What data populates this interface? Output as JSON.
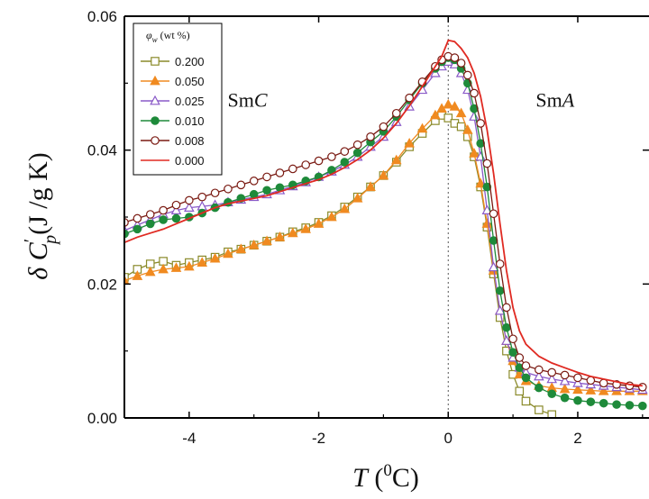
{
  "chart_data": {
    "type": "line",
    "xlabel": "T (⁰C)",
    "ylabel": "δC′p (J/g K)",
    "xlim": [
      -5.0,
      3.1
    ],
    "ylim": [
      0.0,
      0.06
    ],
    "xticks": [
      "-4",
      "-2",
      "0",
      "2"
    ],
    "xtick_values": [
      -4,
      -2,
      0,
      2
    ],
    "yticks": [
      "0.00",
      "0.02",
      "0.04",
      "0.06"
    ],
    "ytick_values": [
      0.0,
      0.02,
      0.04,
      0.06
    ],
    "grid": false,
    "legend_position": "top-left",
    "legend_title": "φw (wt %)",
    "annotations": [
      {
        "text": "SmC",
        "x": -3.1,
        "y": 0.0465
      },
      {
        "text": "SmA",
        "x": 1.65,
        "y": 0.0465
      }
    ],
    "transition_line_x": 0,
    "series": [
      {
        "name": "0.200",
        "color": "#8a8a2a",
        "marker": "open-square",
        "x": [
          -5.0,
          -4.8,
          -4.6,
          -4.4,
          -4.2,
          -4.0,
          -3.8,
          -3.6,
          -3.4,
          -3.2,
          -3.0,
          -2.8,
          -2.6,
          -2.4,
          -2.2,
          -2.0,
          -1.8,
          -1.6,
          -1.4,
          -1.2,
          -1.0,
          -0.8,
          -0.6,
          -0.4,
          -0.2,
          -0.1,
          0.0,
          0.1,
          0.2,
          0.3,
          0.4,
          0.5,
          0.6,
          0.7,
          0.8,
          0.9,
          1.0,
          1.1,
          1.2,
          1.4,
          1.6
        ],
        "y": [
          0.021,
          0.0222,
          0.023,
          0.0234,
          0.0228,
          0.0232,
          0.0236,
          0.024,
          0.0248,
          0.0252,
          0.0258,
          0.0264,
          0.027,
          0.0278,
          0.0284,
          0.0292,
          0.0302,
          0.0315,
          0.033,
          0.0345,
          0.0362,
          0.0382,
          0.0405,
          0.0425,
          0.0444,
          0.0452,
          0.0448,
          0.044,
          0.0435,
          0.042,
          0.039,
          0.0345,
          0.0285,
          0.0215,
          0.015,
          0.01,
          0.0065,
          0.004,
          0.0025,
          0.0012,
          0.0005
        ]
      },
      {
        "name": "0.050",
        "color": "#f08a20",
        "marker": "filled-triangle",
        "x": [
          -5.0,
          -4.8,
          -4.6,
          -4.4,
          -4.2,
          -4.0,
          -3.8,
          -3.6,
          -3.4,
          -3.2,
          -3.0,
          -2.8,
          -2.6,
          -2.4,
          -2.2,
          -2.0,
          -1.8,
          -1.6,
          -1.4,
          -1.2,
          -1.0,
          -0.8,
          -0.6,
          -0.4,
          -0.2,
          -0.1,
          0.0,
          0.1,
          0.2,
          0.3,
          0.4,
          0.5,
          0.6,
          0.7,
          0.8,
          0.9,
          1.0,
          1.1,
          1.2,
          1.4,
          1.6,
          1.8,
          2.0,
          2.2,
          2.4,
          2.6,
          2.8,
          3.0
        ],
        "y": [
          0.0205,
          0.0212,
          0.0218,
          0.0222,
          0.0224,
          0.0226,
          0.0232,
          0.0238,
          0.0245,
          0.0252,
          0.0258,
          0.0264,
          0.027,
          0.0276,
          0.0282,
          0.029,
          0.03,
          0.0312,
          0.0328,
          0.0345,
          0.0362,
          0.0385,
          0.041,
          0.0432,
          0.0452,
          0.0462,
          0.0468,
          0.0465,
          0.0455,
          0.043,
          0.0395,
          0.035,
          0.029,
          0.022,
          0.016,
          0.0115,
          0.0085,
          0.0065,
          0.0055,
          0.0048,
          0.0045,
          0.0043,
          0.0042,
          0.0041,
          0.004,
          0.004,
          0.004,
          0.004
        ]
      },
      {
        "name": "0.025",
        "color": "#8a5ac8",
        "marker": "open-triangle",
        "x": [
          -5.0,
          -4.8,
          -4.6,
          -4.4,
          -4.2,
          -4.0,
          -3.8,
          -3.6,
          -3.4,
          -3.2,
          -3.0,
          -2.8,
          -2.6,
          -2.4,
          -2.2,
          -2.0,
          -1.8,
          -1.6,
          -1.4,
          -1.2,
          -1.0,
          -0.8,
          -0.6,
          -0.4,
          -0.2,
          -0.1,
          0.0,
          0.1,
          0.2,
          0.3,
          0.4,
          0.5,
          0.6,
          0.7,
          0.8,
          0.9,
          1.0,
          1.1,
          1.2,
          1.4,
          1.6,
          1.8,
          2.0,
          2.2,
          2.4,
          2.6,
          2.8,
          3.0
        ],
        "y": [
          0.028,
          0.0288,
          0.0296,
          0.0304,
          0.031,
          0.0314,
          0.0316,
          0.0318,
          0.0322,
          0.0326,
          0.033,
          0.0334,
          0.034,
          0.0346,
          0.0352,
          0.036,
          0.0368,
          0.0378,
          0.039,
          0.0405,
          0.042,
          0.0442,
          0.0465,
          0.049,
          0.0515,
          0.0525,
          0.0532,
          0.0528,
          0.0515,
          0.049,
          0.045,
          0.039,
          0.031,
          0.0225,
          0.016,
          0.0115,
          0.009,
          0.0075,
          0.0068,
          0.0062,
          0.0058,
          0.0055,
          0.0052,
          0.005,
          0.0048,
          0.0046,
          0.0044,
          0.0042
        ]
      },
      {
        "name": "0.010",
        "color": "#1e8a3a",
        "marker": "filled-circle",
        "x": [
          -5.0,
          -4.8,
          -4.6,
          -4.4,
          -4.2,
          -4.0,
          -3.8,
          -3.6,
          -3.4,
          -3.2,
          -3.0,
          -2.8,
          -2.6,
          -2.4,
          -2.2,
          -2.0,
          -1.8,
          -1.6,
          -1.4,
          -1.2,
          -1.0,
          -0.8,
          -0.6,
          -0.4,
          -0.2,
          -0.1,
          0.0,
          0.1,
          0.2,
          0.3,
          0.4,
          0.5,
          0.6,
          0.7,
          0.8,
          0.9,
          1.0,
          1.1,
          1.2,
          1.4,
          1.6,
          1.8,
          2.0,
          2.2,
          2.4,
          2.6,
          2.8,
          3.0
        ],
        "y": [
          0.0275,
          0.0282,
          0.029,
          0.0296,
          0.0298,
          0.03,
          0.0306,
          0.0314,
          0.0322,
          0.0328,
          0.0334,
          0.034,
          0.0344,
          0.0348,
          0.0354,
          0.036,
          0.037,
          0.0382,
          0.0396,
          0.0412,
          0.0428,
          0.045,
          0.0475,
          0.05,
          0.0522,
          0.0532,
          0.0538,
          0.0535,
          0.0522,
          0.05,
          0.0462,
          0.041,
          0.0345,
          0.0265,
          0.019,
          0.0135,
          0.0098,
          0.0075,
          0.006,
          0.0045,
          0.0036,
          0.003,
          0.0026,
          0.0024,
          0.0022,
          0.002,
          0.0019,
          0.0018
        ]
      },
      {
        "name": "0.008",
        "color": "#7a1a12",
        "marker": "open-circle",
        "x": [
          -5.0,
          -4.8,
          -4.6,
          -4.4,
          -4.2,
          -4.0,
          -3.8,
          -3.6,
          -3.4,
          -3.2,
          -3.0,
          -2.8,
          -2.6,
          -2.4,
          -2.2,
          -2.0,
          -1.8,
          -1.6,
          -1.4,
          -1.2,
          -1.0,
          -0.8,
          -0.6,
          -0.4,
          -0.2,
          -0.1,
          0.0,
          0.1,
          0.2,
          0.3,
          0.4,
          0.5,
          0.6,
          0.7,
          0.8,
          0.9,
          1.0,
          1.1,
          1.2,
          1.4,
          1.6,
          1.8,
          2.0,
          2.2,
          2.4,
          2.6,
          2.8,
          3.0
        ],
        "y": [
          0.0292,
          0.0298,
          0.0304,
          0.031,
          0.0318,
          0.0325,
          0.033,
          0.0336,
          0.0342,
          0.0348,
          0.0354,
          0.036,
          0.0366,
          0.0372,
          0.0378,
          0.0384,
          0.039,
          0.0398,
          0.0408,
          0.042,
          0.0435,
          0.0455,
          0.0478,
          0.0502,
          0.0525,
          0.0535,
          0.054,
          0.0538,
          0.053,
          0.0512,
          0.0485,
          0.044,
          0.038,
          0.0305,
          0.023,
          0.0165,
          0.0118,
          0.009,
          0.0078,
          0.0072,
          0.0068,
          0.0064,
          0.006,
          0.0056,
          0.0052,
          0.005,
          0.0048,
          0.0046
        ]
      },
      {
        "name": "0.000",
        "color": "#e02a22",
        "marker": "none",
        "x": [
          -5.0,
          -4.8,
          -4.6,
          -4.4,
          -4.2,
          -4.0,
          -3.8,
          -3.6,
          -3.4,
          -3.2,
          -3.0,
          -2.8,
          -2.6,
          -2.4,
          -2.2,
          -2.0,
          -1.8,
          -1.6,
          -1.4,
          -1.2,
          -1.0,
          -0.8,
          -0.6,
          -0.4,
          -0.2,
          -0.1,
          0.0,
          0.1,
          0.2,
          0.3,
          0.4,
          0.5,
          0.6,
          0.7,
          0.8,
          0.9,
          1.0,
          1.1,
          1.2,
          1.4,
          1.6,
          1.8,
          2.0,
          2.2,
          2.4,
          2.6,
          2.8,
          3.0
        ],
        "y": [
          0.0262,
          0.027,
          0.0276,
          0.0282,
          0.029,
          0.0298,
          0.0306,
          0.0314,
          0.032,
          0.0324,
          0.0328,
          0.0332,
          0.0338,
          0.0344,
          0.035,
          0.0356,
          0.0364,
          0.0374,
          0.0386,
          0.04,
          0.0418,
          0.044,
          0.0466,
          0.0495,
          0.0525,
          0.054,
          0.0564,
          0.0562,
          0.0552,
          0.0538,
          0.0515,
          0.048,
          0.043,
          0.0365,
          0.029,
          0.022,
          0.0165,
          0.013,
          0.011,
          0.0092,
          0.0082,
          0.0075,
          0.0068,
          0.0062,
          0.0058,
          0.0054,
          0.005,
          0.0048
        ]
      }
    ]
  }
}
